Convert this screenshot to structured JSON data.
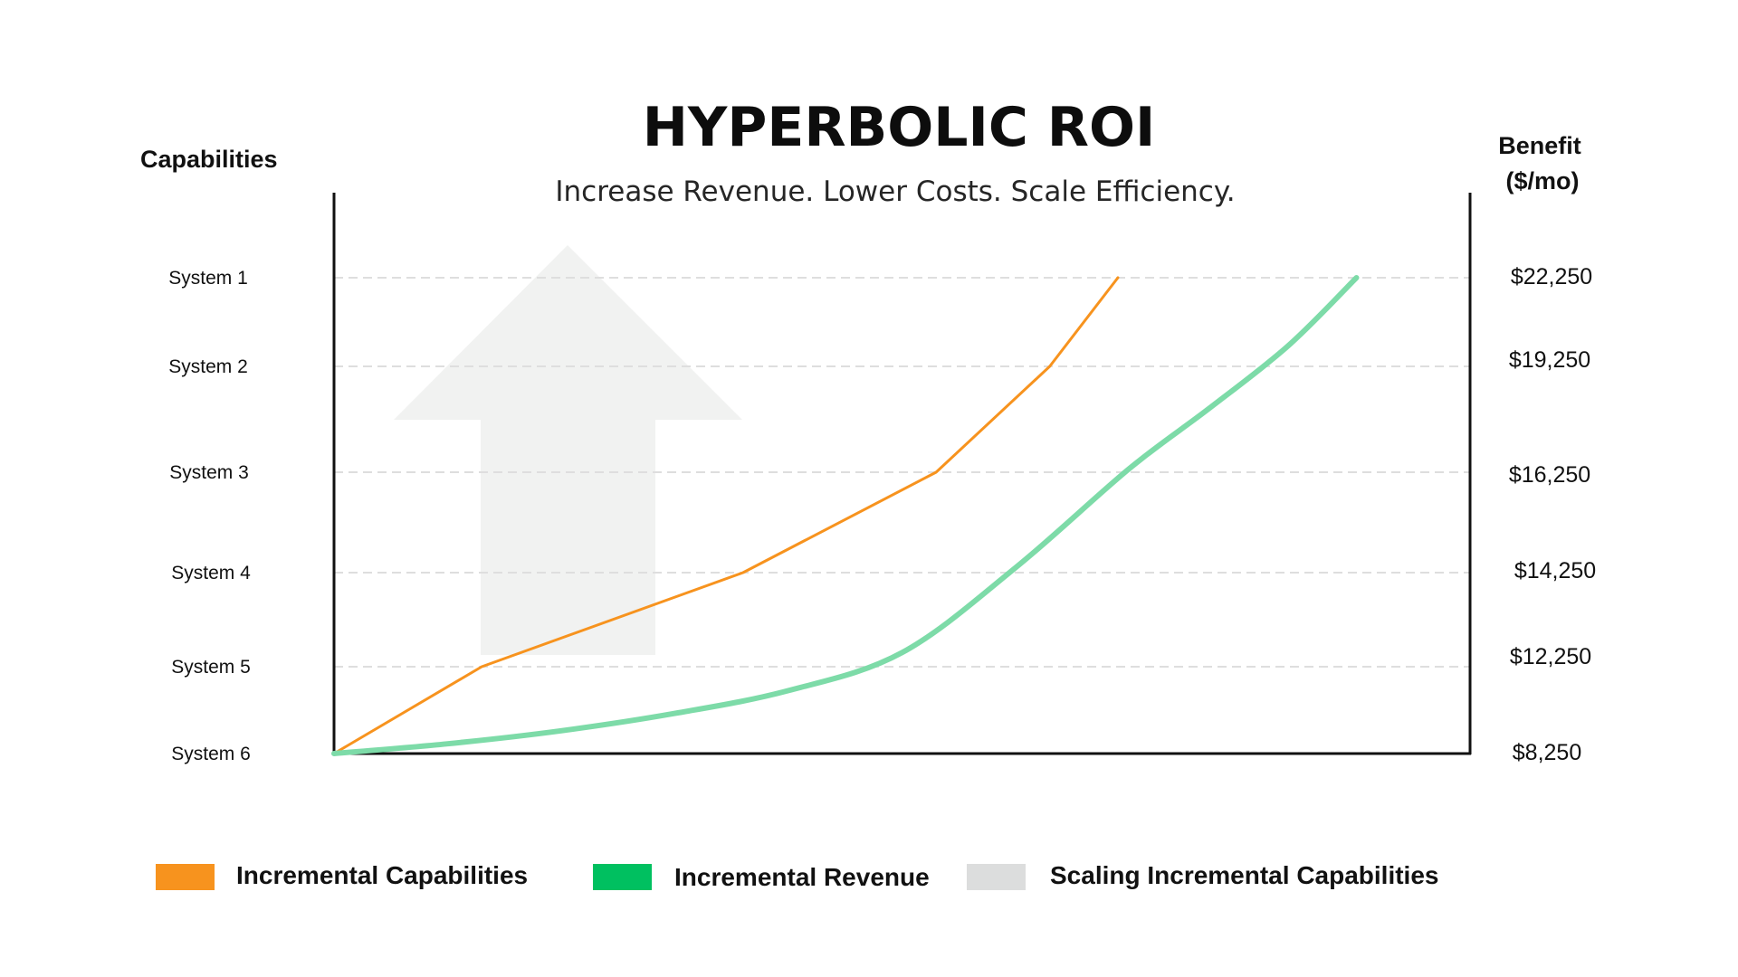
{
  "chart_data": {
    "type": "line",
    "title": "HYPERBOLIC ROI",
    "subtitle": "Increase Revenue.  Lower Costs.  Scale Efficiency.",
    "y_left_label": "Capabilities",
    "y_right_label_line1": "Benefit",
    "y_right_label_line2": "($/mo)",
    "left_categories": [
      "System 1",
      "System 2",
      "System 3",
      "System 4",
      "System 5",
      "System 6"
    ],
    "right_ticks": [
      "$22,250",
      "$19,250",
      "$16,250",
      "$14,250",
      "$12,250",
      "$8,250"
    ],
    "grid": true,
    "series": [
      {
        "name": "Incremental Capabilities",
        "color": "#f7931e",
        "points": [
          {
            "x": 0,
            "y": "System 6"
          },
          {
            "x": 13,
            "y": "System 5"
          },
          {
            "x": 36,
            "y": "System 4"
          },
          {
            "x": 53,
            "y": "System 3"
          },
          {
            "x": 63,
            "y": "System 2"
          },
          {
            "x": 69,
            "y": "System 1"
          }
        ]
      },
      {
        "name": "Incremental Revenue",
        "color": "#7ddba8",
        "legend_color": "#00c060",
        "points": [
          {
            "x": 0,
            "y": 8250
          },
          {
            "x": 10,
            "y": 8700
          },
          {
            "x": 20,
            "y": 9300
          },
          {
            "x": 30,
            "y": 10100
          },
          {
            "x": 40,
            "y": 11150
          },
          {
            "x": 50,
            "y": 12550
          },
          {
            "x": 60,
            "y": 14350
          },
          {
            "x": 70,
            "y": 16350
          },
          {
            "x": 77,
            "y": 18050
          },
          {
            "x": 84,
            "y": 19950
          },
          {
            "x": 90,
            "y": 22250
          }
        ]
      }
    ],
    "background_shape": {
      "name": "Scaling Incremental Capabilities",
      "shape": "up-arrow",
      "color": "#f1f2f1",
      "legend_color": "#dcdddd"
    },
    "legend": {
      "position": "bottom",
      "items": [
        {
          "label": "Incremental Capabilities",
          "color": "#f7931e"
        },
        {
          "label": "Incremental Revenue",
          "color": "#00c060"
        },
        {
          "label": "Scaling Incremental Capabilities",
          "color": "#dcdddd"
        }
      ]
    }
  }
}
